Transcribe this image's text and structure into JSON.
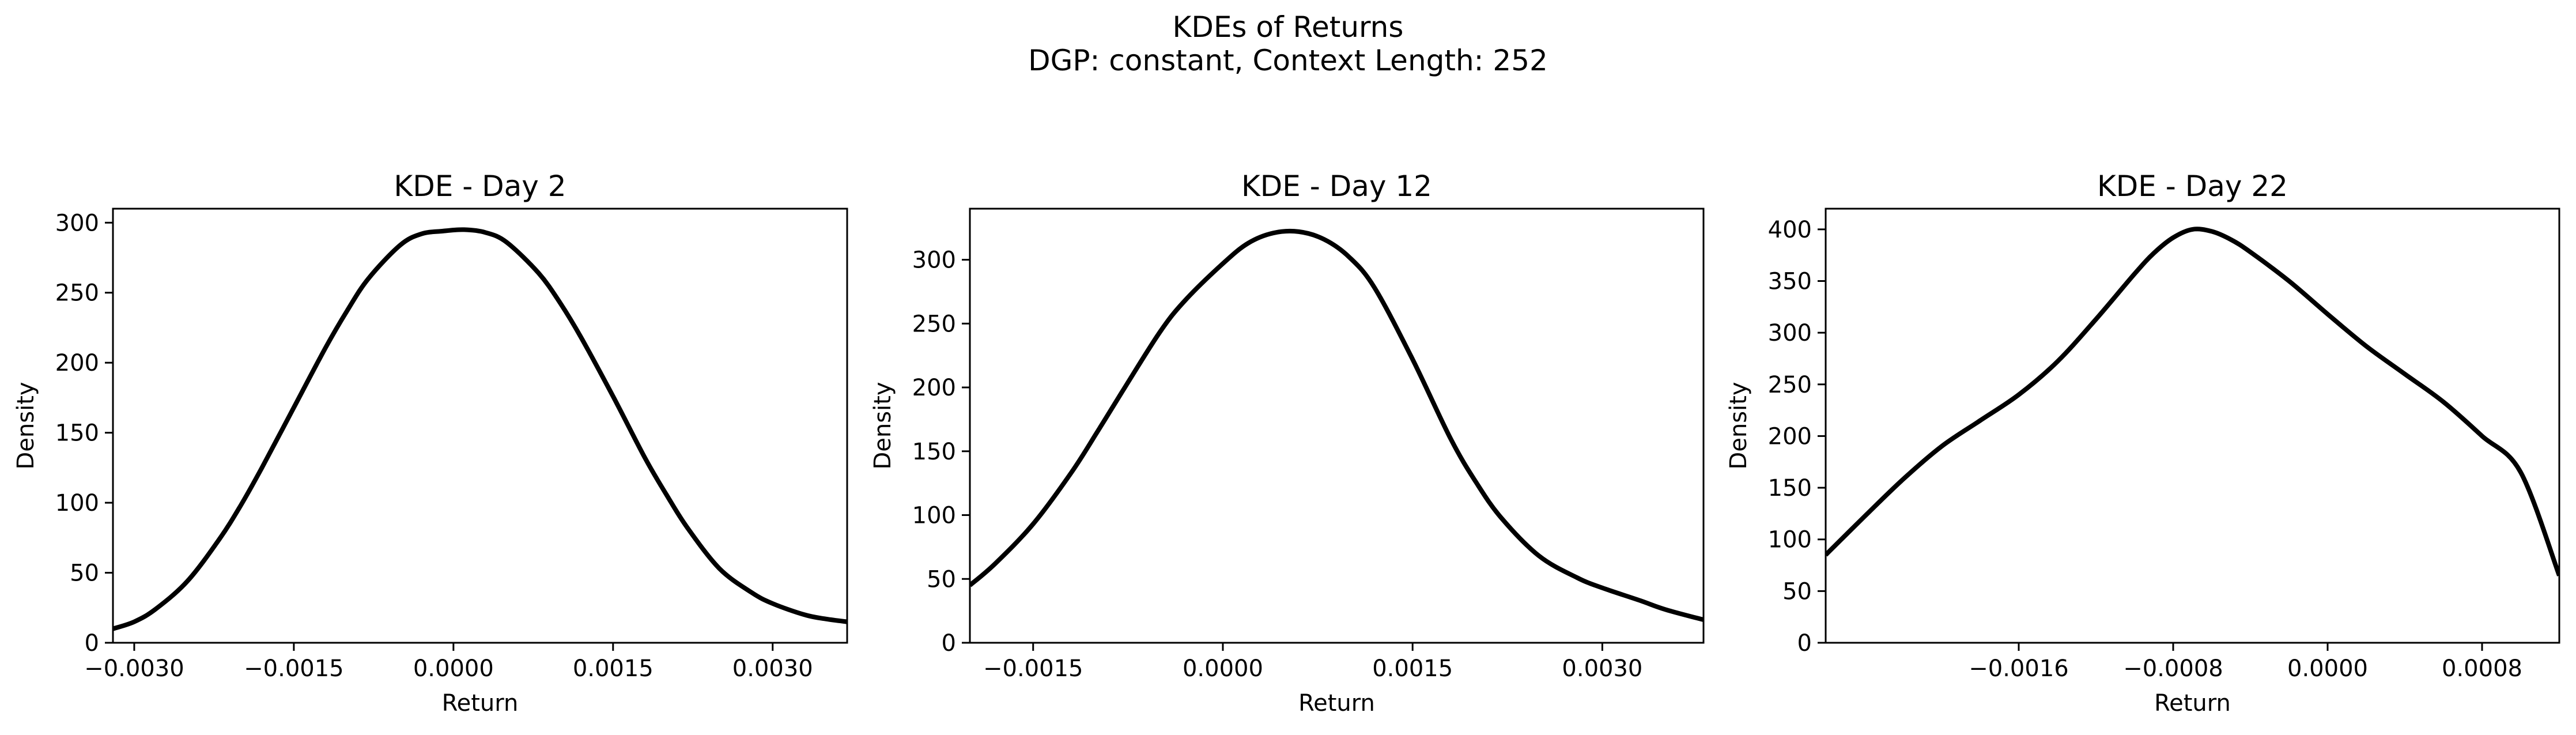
{
  "figure": {
    "title_line1": "KDEs of Returns",
    "title_line2": "DGP: constant, Context Length: 252"
  },
  "colors": {
    "line": "#000000",
    "background": "#ffffff"
  },
  "chart_data": [
    {
      "type": "line",
      "title": "KDE - Day 2",
      "xlabel": "Return",
      "ylabel": "Density",
      "xlim": [
        -0.0032,
        0.0037
      ],
      "ylim": [
        0,
        310
      ],
      "xticks": [
        -0.003,
        -0.0015,
        0.0,
        0.0015,
        0.003
      ],
      "xtick_labels": [
        "−0.0030",
        "−0.0015",
        "0.0000",
        "0.0015",
        "0.0030"
      ],
      "yticks": [
        0,
        50,
        100,
        150,
        200,
        250,
        300
      ],
      "ytick_labels": [
        "0",
        "50",
        "100",
        "150",
        "200",
        "250",
        "300"
      ],
      "grid": false,
      "series": [
        {
          "x": [
            -0.0032,
            -0.003,
            -0.0028,
            -0.0025,
            -0.0022,
            -0.002,
            -0.0018,
            -0.0015,
            -0.0012,
            -0.001,
            -0.0008,
            -0.0005,
            -0.0003,
            -0.0001,
            0.0001,
            0.0003,
            0.0005,
            0.0008,
            0.001,
            0.0012,
            0.0015,
            0.0018,
            0.002,
            0.0022,
            0.0025,
            0.0028,
            0.003,
            0.0033,
            0.0035,
            0.0037
          ],
          "y": [
            10,
            15,
            24,
            44,
            74,
            98,
            125,
            168,
            211,
            237,
            260,
            284,
            292,
            294,
            295,
            293,
            286,
            264,
            243,
            218,
            176,
            132,
            106,
            82,
            53,
            36,
            28,
            20,
            17,
            15
          ]
        }
      ]
    },
    {
      "type": "line",
      "title": "KDE - Day 12",
      "xlabel": "Return",
      "ylabel": "Density",
      "xlim": [
        -0.002,
        0.0038
      ],
      "ylim": [
        0,
        340
      ],
      "xticks": [
        -0.0015,
        0.0,
        0.0015,
        0.003
      ],
      "xtick_labels": [
        "−0.0015",
        "0.0000",
        "0.0015",
        "0.0030"
      ],
      "yticks": [
        0,
        50,
        100,
        150,
        200,
        250,
        300
      ],
      "ytick_labels": [
        "0",
        "50",
        "100",
        "150",
        "200",
        "250",
        "300"
      ],
      "grid": false,
      "series": [
        {
          "x": [
            -0.002,
            -0.0018,
            -0.0015,
            -0.0012,
            -0.001,
            -0.0008,
            -0.0005,
            -0.0003,
            0.0,
            0.0002,
            0.0004,
            0.0006,
            0.0008,
            0.001,
            0.0012,
            0.0015,
            0.0018,
            0.002,
            0.0022,
            0.0025,
            0.0028,
            0.003,
            0.0033,
            0.0035,
            0.0038
          ],
          "y": [
            45,
            62,
            93,
            133,
            164,
            196,
            243,
            268,
            297,
            313,
            321,
            322,
            316,
            302,
            278,
            222,
            160,
            126,
            98,
            68,
            51,
            43,
            33,
            26,
            18
          ]
        }
      ]
    },
    {
      "type": "line",
      "title": "KDE - Day 22",
      "xlabel": "Return",
      "ylabel": "Density",
      "xlim": [
        -0.0026,
        0.0012
      ],
      "ylim": [
        0,
        420
      ],
      "xticks": [
        -0.0016,
        -0.0008,
        0.0,
        0.0008
      ],
      "xtick_labels": [
        "−0.0016",
        "−0.0008",
        "0.0000",
        "0.0008"
      ],
      "yticks": [
        0,
        50,
        100,
        150,
        200,
        250,
        300,
        350,
        400
      ],
      "ytick_labels": [
        "0",
        "50",
        "100",
        "150",
        "200",
        "250",
        "300",
        "350",
        "400"
      ],
      "grid": false,
      "series": [
        {
          "x": [
            -0.0026,
            -0.0024,
            -0.0022,
            -0.002,
            -0.0018,
            -0.0016,
            -0.0014,
            -0.0012,
            -0.001,
            -0.0009,
            -0.0008,
            -0.0007,
            -0.0006,
            -0.0005,
            -0.0004,
            -0.0002,
            0.0,
            0.0002,
            0.0004,
            0.0006,
            0.0008,
            0.001,
            0.0012
          ],
          "y": [
            85,
            122,
            158,
            190,
            215,
            240,
            272,
            313,
            357,
            377,
            392,
            400,
            398,
            390,
            378,
            350,
            318,
            287,
            260,
            233,
            200,
            165,
            65
          ]
        }
      ]
    }
  ]
}
